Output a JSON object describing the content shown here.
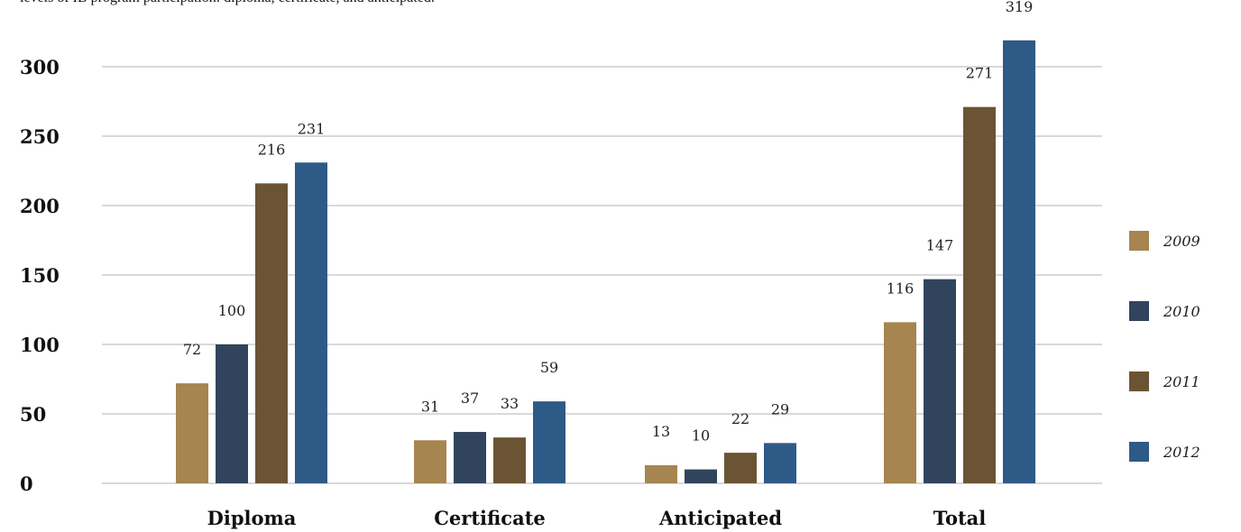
{
  "intro": "levels of IB program participation: diploma, certificate, and anticipated.",
  "chart_data": {
    "type": "bar",
    "categories": [
      "Diploma",
      "Certificate",
      "Anticipated",
      "Total"
    ],
    "series": [
      {
        "name": "2009",
        "color": "#A68550",
        "values": [
          72,
          31,
          13,
          116
        ]
      },
      {
        "name": "2010",
        "color": "#31445E",
        "values": [
          100,
          37,
          10,
          147
        ]
      },
      {
        "name": "2011",
        "color": "#6B5433",
        "values": [
          216,
          33,
          22,
          271
        ]
      },
      {
        "name": "2012",
        "color": "#2E5A88",
        "values": [
          231,
          59,
          29,
          319
        ]
      }
    ],
    "yticks": [
      0,
      50,
      100,
      150,
      200,
      250,
      300
    ],
    "ylim": [
      0,
      300
    ],
    "grid": true,
    "legend_position": "right"
  }
}
